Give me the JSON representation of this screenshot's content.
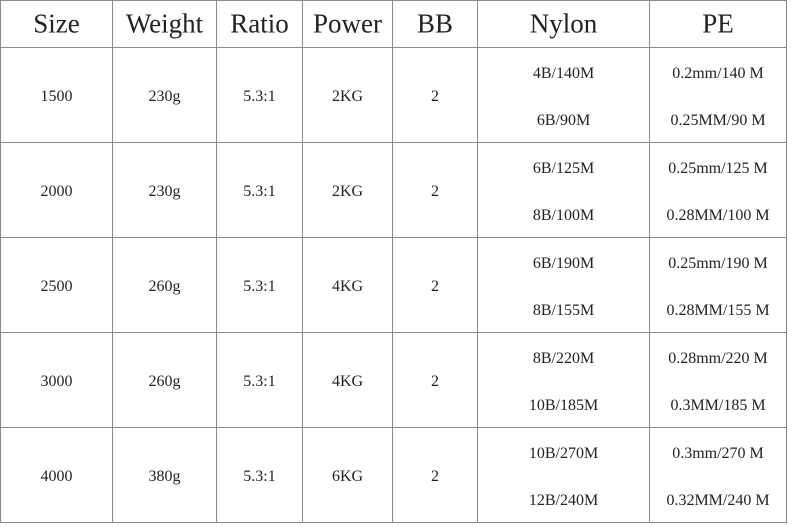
{
  "table": {
    "header": [
      "Size",
      "Weight",
      "Ratio",
      "Power",
      "BB",
      "Nylon",
      "PE"
    ],
    "rows": [
      [
        "1500",
        "230g",
        "5.3:1",
        "2KG",
        "2",
        [
          "4B/140M",
          "6B/90M"
        ],
        [
          "0.2mm/140 M",
          "0.25MM/90 M"
        ]
      ],
      [
        "2000",
        "230g",
        "5.3:1",
        "2KG",
        "2",
        [
          "6B/125M",
          "8B/100M"
        ],
        [
          "0.25mm/125 M",
          "0.28MM/100 M"
        ]
      ],
      [
        "2500",
        "260g",
        "5.3:1",
        "4KG",
        "2",
        [
          "6B/190M",
          "8B/155M"
        ],
        [
          "0.25mm/190 M",
          "0.28MM/155 M"
        ]
      ],
      [
        "3000",
        "260g",
        "5.3:1",
        "4KG",
        "2",
        [
          "8B/220M",
          "10B/185M"
        ],
        [
          "0.28mm/220 M",
          "0.3MM/185 M"
        ]
      ],
      [
        "4000",
        "380g",
        "5.3:1",
        "6KG",
        "2",
        [
          "10B/270M",
          "12B/240M"
        ],
        [
          "0.3mm/270 M",
          "0.32MM/240 M"
        ]
      ]
    ]
  }
}
